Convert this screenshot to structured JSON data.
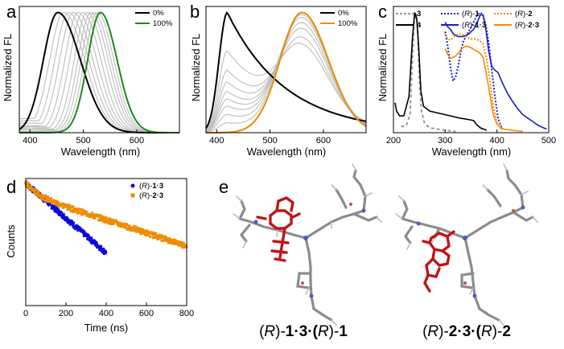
{
  "panels": {
    "a": {
      "label": "a"
    },
    "b": {
      "label": "b"
    },
    "c": {
      "label": "c"
    },
    "d": {
      "label": "d"
    },
    "e": {
      "label": "e",
      "captions": [
        {
          "p1": "(",
          "i1": "R",
          "p2": ")-",
          "b1": "1",
          "p3": "·",
          "b2": "3",
          "p4": "·(",
          "i2": "R",
          "p5": ")-",
          "b3": "1"
        },
        {
          "p1": "(",
          "i1": "R",
          "p2": ")-",
          "b1": "2",
          "p3": "·",
          "b2": "3",
          "p4": "·(",
          "i2": "R",
          "p5": ")-",
          "b3": "2"
        }
      ],
      "colors": {
        "host": "#8c8c8c",
        "guest": "#c0141a",
        "nitrogen": "#4a5bd0",
        "oxygen": "#d04a4a"
      }
    }
  },
  "chart_data": [
    {
      "id": "a",
      "type": "line",
      "title": "",
      "xlabel": "Wavelength (nm)",
      "ylabel": "Normalized FL",
      "xlim": [
        380,
        680
      ],
      "ylim": [
        0,
        1.05
      ],
      "xticks": [
        400,
        500,
        600
      ],
      "legend_position": "top-right",
      "legend": [
        {
          "name": "0%",
          "color": "#000000"
        },
        {
          "name": "100%",
          "color": "#1a8a1a"
        }
      ],
      "series": [
        {
          "name": "0%",
          "color": "#000000",
          "peak": 452,
          "width_left": 38,
          "width_right": 60,
          "baseline": 0
        },
        {
          "name": "10%",
          "color": "#bdbdbd",
          "peak": 463,
          "width_left": 37,
          "width_right": 56,
          "baseline": 0.12
        },
        {
          "name": "20%",
          "color": "#bdbdbd",
          "peak": 472,
          "width_left": 36,
          "width_right": 54,
          "baseline": 0.1
        },
        {
          "name": "30%",
          "color": "#bdbdbd",
          "peak": 481,
          "width_left": 36,
          "width_right": 52,
          "baseline": 0.08
        },
        {
          "name": "40%",
          "color": "#bdbdbd",
          "peak": 490,
          "width_left": 35,
          "width_right": 50,
          "baseline": 0.06
        },
        {
          "name": "50%",
          "color": "#bdbdbd",
          "peak": 499,
          "width_left": 35,
          "width_right": 48,
          "baseline": 0.05
        },
        {
          "name": "60%",
          "color": "#bdbdbd",
          "peak": 507,
          "width_left": 34,
          "width_right": 47,
          "baseline": 0.04
        },
        {
          "name": "70%",
          "color": "#bdbdbd",
          "peak": 514,
          "width_left": 34,
          "width_right": 46,
          "baseline": 0.03
        },
        {
          "name": "80%",
          "color": "#bdbdbd",
          "peak": 520,
          "width_left": 34,
          "width_right": 45,
          "baseline": 0.02
        },
        {
          "name": "90%",
          "color": "#bdbdbd",
          "peak": 526,
          "width_left": 34,
          "width_right": 44,
          "baseline": 0.01
        },
        {
          "name": "100%",
          "color": "#1a8a1a",
          "peak": 532,
          "width_left": 34,
          "width_right": 44,
          "baseline": 0
        }
      ]
    },
    {
      "id": "b",
      "type": "line",
      "title": "",
      "xlabel": "Wavelength (nm)",
      "ylabel": "Normalized FL",
      "xlim": [
        380,
        680
      ],
      "ylim": [
        0,
        1.05
      ],
      "xticks": [
        400,
        500,
        600
      ],
      "legend_position": "top-right",
      "legend": [
        {
          "name": "0%",
          "color": "#000000"
        },
        {
          "name": "100%",
          "color": "#f08c00"
        }
      ],
      "series": [
        {
          "name": "0%",
          "color": "#000000",
          "monomer_amp": 1.0,
          "excimer_amp": 0.0
        },
        {
          "name": "10%",
          "color": "#bdbdbd",
          "monomer_amp": 0.68,
          "excimer_amp": 0.55
        },
        {
          "name": "20%",
          "color": "#bdbdbd",
          "monomer_amp": 0.52,
          "excimer_amp": 0.65
        },
        {
          "name": "30%",
          "color": "#bdbdbd",
          "monomer_amp": 0.42,
          "excimer_amp": 0.75
        },
        {
          "name": "40%",
          "color": "#bdbdbd",
          "monomer_amp": 0.34,
          "excimer_amp": 0.82
        },
        {
          "name": "50%",
          "color": "#bdbdbd",
          "monomer_amp": 0.28,
          "excimer_amp": 0.88
        },
        {
          "name": "60%",
          "color": "#bdbdbd",
          "monomer_amp": 0.22,
          "excimer_amp": 0.92
        },
        {
          "name": "70%",
          "color": "#bdbdbd",
          "monomer_amp": 0.15,
          "excimer_amp": 0.96
        },
        {
          "name": "80%",
          "color": "#bdbdbd",
          "monomer_amp": 0.08,
          "excimer_amp": 0.98
        },
        {
          "name": "100%",
          "color": "#f08c00",
          "monomer_amp": 0.0,
          "excimer_amp": 1.0
        }
      ],
      "monomer_peak": 420,
      "excimer_peak": 560
    },
    {
      "id": "c",
      "type": "line",
      "title": "",
      "xlabel": "Wavelength (nm)",
      "ylabel": "Normalized FL",
      "xlim": [
        200,
        500
      ],
      "ylim": [
        0,
        1.05
      ],
      "xticks": [
        200,
        300,
        400,
        500
      ],
      "legend_position": "top",
      "legend": [
        {
          "name": "3",
          "color": "#999999",
          "style": "dashed",
          "bold": true
        },
        {
          "name": "4",
          "color": "#000000",
          "style": "solid",
          "bold": true
        },
        {
          "pre": "(",
          "ital": "R",
          "post": ")-",
          "name": "1",
          "color": "#1a1acc",
          "style": "dotted",
          "bold": true
        },
        {
          "pre": "(",
          "ital": "R",
          "post": ")-",
          "name": "1·3",
          "color": "#1a1acc",
          "style": "solid",
          "bold": true
        },
        {
          "pre": "(",
          "ital": "R",
          "post": ")-",
          "name": "2",
          "color": "#f08c00",
          "style": "dotted",
          "bold": true
        },
        {
          "pre": "(",
          "ital": "R",
          "post": ")-",
          "name": "2·3",
          "color": "#f08c00",
          "style": "solid",
          "bold": true
        }
      ],
      "series": [
        {
          "name": "3",
          "points": [
            [
              215,
              0.05
            ],
            [
              225,
              0.06
            ],
            [
              232,
              0.15
            ],
            [
              236,
              0.55
            ],
            [
              240,
              0.92
            ],
            [
              244,
              0.99
            ],
            [
              247,
              0.85
            ],
            [
              250,
              0.45
            ],
            [
              254,
              0.18
            ],
            [
              260,
              0.08
            ],
            [
              270,
              0.04
            ],
            [
              285,
              0.03
            ],
            [
              300,
              0.02
            ],
            [
              320,
              0.01
            ]
          ]
        },
        {
          "name": "4",
          "points": [
            [
              203,
              0.25
            ],
            [
              206,
              0.18
            ],
            [
              212,
              0.14
            ],
            [
              220,
              0.14
            ],
            [
              230,
              0.3
            ],
            [
              237,
              0.8
            ],
            [
              241,
              1.0
            ],
            [
              245,
              0.95
            ],
            [
              249,
              0.7
            ],
            [
              253,
              0.35
            ],
            [
              258,
              0.22
            ],
            [
              270,
              0.18
            ],
            [
              290,
              0.16
            ],
            [
              310,
              0.14
            ],
            [
              330,
              0.12
            ],
            [
              345,
              0.11
            ],
            [
              355,
              0.1
            ],
            [
              360,
              0.07
            ],
            [
              368,
              0.04
            ],
            [
              380,
              0.02
            ]
          ]
        },
        {
          "name": "(R)-1",
          "points": [
            [
              300,
              0.84
            ],
            [
              305,
              0.72
            ],
            [
              310,
              0.55
            ],
            [
              315,
              0.43
            ],
            [
              320,
              0.46
            ],
            [
              325,
              0.55
            ],
            [
              330,
              0.67
            ],
            [
              335,
              0.76
            ],
            [
              340,
              0.8
            ],
            [
              348,
              0.86
            ],
            [
              355,
              0.92
            ],
            [
              362,
              0.98
            ],
            [
              368,
              1.0
            ],
            [
              373,
              0.98
            ],
            [
              378,
              0.9
            ],
            [
              384,
              0.75
            ],
            [
              390,
              0.52
            ],
            [
              396,
              0.3
            ],
            [
              402,
              0.12
            ],
            [
              410,
              0.03
            ]
          ]
        },
        {
          "name": "(R)-1·3",
          "points": [
            [
              300,
              0.92
            ],
            [
              305,
              0.88
            ],
            [
              310,
              0.86
            ],
            [
              316,
              0.82
            ],
            [
              325,
              0.8
            ],
            [
              335,
              0.8
            ],
            [
              345,
              0.82
            ],
            [
              355,
              0.86
            ],
            [
              362,
              0.92
            ],
            [
              368,
              0.98
            ],
            [
              373,
              0.98
            ],
            [
              378,
              0.88
            ],
            [
              384,
              0.68
            ],
            [
              390,
              0.55
            ],
            [
              396,
              0.52
            ],
            [
              402,
              0.5
            ],
            [
              410,
              0.42
            ],
            [
              420,
              0.33
            ],
            [
              430,
              0.26
            ],
            [
              440,
              0.2
            ],
            [
              450,
              0.15
            ],
            [
              460,
              0.12
            ],
            [
              470,
              0.09
            ],
            [
              480,
              0.06
            ],
            [
              490,
              0.04
            ],
            [
              496,
              0.03
            ]
          ]
        },
        {
          "name": "(R)-2",
          "points": [
            [
              300,
              0.82
            ],
            [
              305,
              0.78
            ],
            [
              310,
              0.77
            ],
            [
              318,
              0.8
            ],
            [
              325,
              0.82
            ],
            [
              332,
              0.82
            ],
            [
              340,
              0.8
            ],
            [
              348,
              0.78
            ],
            [
              356,
              0.78
            ],
            [
              365,
              0.77
            ],
            [
              373,
              0.74
            ],
            [
              380,
              0.62
            ],
            [
              387,
              0.42
            ],
            [
              393,
              0.22
            ],
            [
              400,
              0.08
            ],
            [
              410,
              0.02
            ]
          ]
        },
        {
          "name": "(R)-2·3",
          "points": [
            [
              300,
              0.7
            ],
            [
              305,
              0.65
            ],
            [
              310,
              0.62
            ],
            [
              318,
              0.63
            ],
            [
              325,
              0.66
            ],
            [
              332,
              0.7
            ],
            [
              340,
              0.72
            ],
            [
              348,
              0.71
            ],
            [
              356,
              0.69
            ],
            [
              365,
              0.67
            ],
            [
              373,
              0.63
            ],
            [
              380,
              0.48
            ],
            [
              387,
              0.3
            ],
            [
              393,
              0.15
            ],
            [
              400,
              0.07
            ],
            [
              412,
              0.03
            ],
            [
              430,
              0.02
            ],
            [
              450,
              0.01
            ]
          ]
        }
      ]
    },
    {
      "id": "d",
      "type": "scatter",
      "title": "",
      "xlabel": "Time (ns)",
      "ylabel": "Counts",
      "xlim": [
        0,
        800
      ],
      "ylog": true,
      "xticks": [
        0,
        200,
        400,
        600,
        800
      ],
      "legend_position": "top-right",
      "legend": [
        {
          "pre": "(",
          "ital": "R",
          "post": ")-",
          "name": "1·3",
          "color": "#0a0ad8"
        },
        {
          "pre": "(",
          "ital": "R",
          "post": ")-",
          "name": "2·3",
          "color": "#f08c00"
        }
      ],
      "series": [
        {
          "name": "(R)-1·3",
          "color": "#0a0ad8",
          "lifetime_ns": 75,
          "peak_counts": 10000,
          "x_max": 400
        },
        {
          "name": "(R)-2·3",
          "color": "#f08c00",
          "lifetime_ns": 200,
          "peak_counts": 10000,
          "x_max": 800
        }
      ],
      "count_floor_levels": [
        1,
        2,
        3,
        4,
        5
      ]
    }
  ]
}
